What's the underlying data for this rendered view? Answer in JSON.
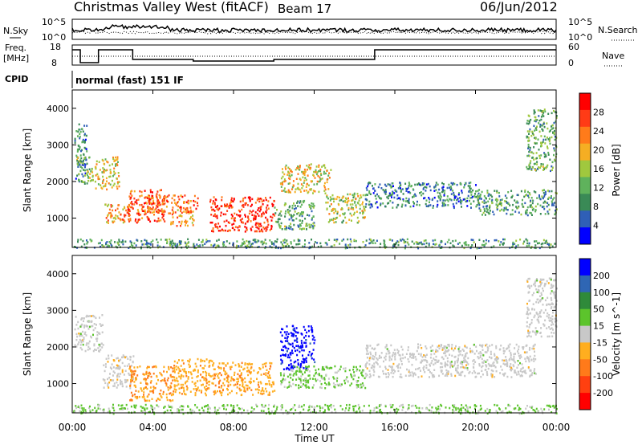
{
  "header": {
    "title": "Christmas Valley West (fitACF)",
    "beam": "Beam 17",
    "date": "06/Jun/2012"
  },
  "nsky_panel": {
    "left_label": "N.Sky",
    "left_ticks": [
      "10^5",
      "10^0"
    ],
    "right_label": "N.Search",
    "right_ticks": [
      "10^5",
      "10^0"
    ]
  },
  "freq_panel": {
    "left_label_1": "Freq.",
    "left_label_2": "[MHz]",
    "left_ticks": [
      "18",
      "8"
    ],
    "right_label": "Nave",
    "right_ticks": [
      "60",
      "0"
    ]
  },
  "cpid": {
    "label": "CPID",
    "value": "normal (fast) 151 IF"
  },
  "x_axis": {
    "label": "Time UT",
    "ticks": [
      "00:00",
      "04:00",
      "08:00",
      "12:00",
      "16:00",
      "20:00",
      "00:00"
    ]
  },
  "colors": {
    "power_scale": [
      "#0000ff",
      "#2f5fb7",
      "#3a8a56",
      "#5fb25c",
      "#a0c83e",
      "#f5ae23",
      "#ff7b1a",
      "#ff3b16",
      "#ff0000"
    ],
    "velocity_scale": [
      "#0000ff",
      "#2f66b4",
      "#2f8a3a",
      "#5cc42c",
      "#c8c8c8",
      "#ffae1f",
      "#ff7a1a",
      "#ff4010",
      "#ff0000"
    ]
  },
  "chart_data": [
    {
      "type": "heatmap",
      "name": "power",
      "xlabel": "Time UT",
      "ylabel": "Slant Range [km]",
      "xlim": [
        0,
        24
      ],
      "ylim": [
        200,
        4500
      ],
      "y_ticks": [
        "1000",
        "2000",
        "3000",
        "4000"
      ],
      "colorbar": {
        "label": "Power [dB]",
        "ticks": [
          "28",
          "24",
          "20",
          "16",
          "12",
          "8",
          "4"
        ],
        "range": [
          0,
          32
        ]
      },
      "regions": [
        {
          "x": [
            0.1,
            0.7
          ],
          "y": [
            2000,
            3600
          ],
          "level": 8
        },
        {
          "x": [
            0.2,
            1.0
          ],
          "y": [
            1900,
            2700
          ],
          "level": 14
        },
        {
          "x": [
            1.1,
            2.3
          ],
          "y": [
            1800,
            2700
          ],
          "level": 18
        },
        {
          "x": [
            1.6,
            2.9
          ],
          "y": [
            850,
            1400
          ],
          "level": 22
        },
        {
          "x": [
            2.7,
            4.6
          ],
          "y": [
            900,
            1800
          ],
          "level": 26
        },
        {
          "x": [
            3.4,
            6.2
          ],
          "y": [
            1150,
            1650
          ],
          "level": 24
        },
        {
          "x": [
            4.8,
            6.0
          ],
          "y": [
            800,
            1250
          ],
          "level": 22
        },
        {
          "x": [
            6.8,
            10.0
          ],
          "y": [
            650,
            1600
          ],
          "level": 28
        },
        {
          "x": [
            10.0,
            12.0
          ],
          "y": [
            700,
            1500
          ],
          "level": 12
        },
        {
          "x": [
            10.3,
            12.8
          ],
          "y": [
            1700,
            2500
          ],
          "level": 18
        },
        {
          "x": [
            12.5,
            14.5
          ],
          "y": [
            900,
            1700
          ],
          "level": 16
        },
        {
          "x": [
            14.5,
            20.0
          ],
          "y": [
            1300,
            2000
          ],
          "level": 8
        },
        {
          "x": [
            20.0,
            24.0
          ],
          "y": [
            1100,
            1800
          ],
          "level": 10
        },
        {
          "x": [
            22.5,
            24.0
          ],
          "y": [
            2300,
            4000
          ],
          "level": 12
        },
        {
          "x": [
            0.0,
            24.0
          ],
          "y": [
            200,
            450
          ],
          "level": 10
        }
      ]
    },
    {
      "type": "heatmap",
      "name": "velocity",
      "xlabel": "Time UT",
      "ylabel": "Slant Range [km]",
      "xlim": [
        0,
        24
      ],
      "ylim": [
        200,
        4500
      ],
      "y_ticks": [
        "1000",
        "2000",
        "3000",
        "4000"
      ],
      "colorbar": {
        "label": "Velocity [m s^-1]",
        "ticks": [
          "200",
          "100",
          "50",
          "15",
          "-15",
          "-50",
          "-100",
          "-200"
        ],
        "range": [
          -250,
          250
        ]
      },
      "regions": [
        {
          "x": [
            0.1,
            1.5
          ],
          "y": [
            1900,
            2900
          ],
          "value": 0
        },
        {
          "x": [
            1.5,
            3.0
          ],
          "y": [
            900,
            1800
          ],
          "value": -10
        },
        {
          "x": [
            2.8,
            5.0
          ],
          "y": [
            550,
            1500
          ],
          "value": -80
        },
        {
          "x": [
            5.0,
            7.0
          ],
          "y": [
            700,
            1700
          ],
          "value": -60
        },
        {
          "x": [
            7.0,
            10.0
          ],
          "y": [
            700,
            1600
          ],
          "value": -70
        },
        {
          "x": [
            10.3,
            12.0
          ],
          "y": [
            1400,
            2600
          ],
          "value": 220
        },
        {
          "x": [
            10.3,
            14.5
          ],
          "y": [
            900,
            1500
          ],
          "value": 40
        },
        {
          "x": [
            14.5,
            23.0
          ],
          "y": [
            1200,
            2100
          ],
          "value": 0
        },
        {
          "x": [
            22.5,
            24.0
          ],
          "y": [
            2300,
            3900
          ],
          "value": 0
        },
        {
          "x": [
            0.0,
            24.0
          ],
          "y": [
            200,
            450
          ],
          "value": 40
        }
      ]
    }
  ]
}
